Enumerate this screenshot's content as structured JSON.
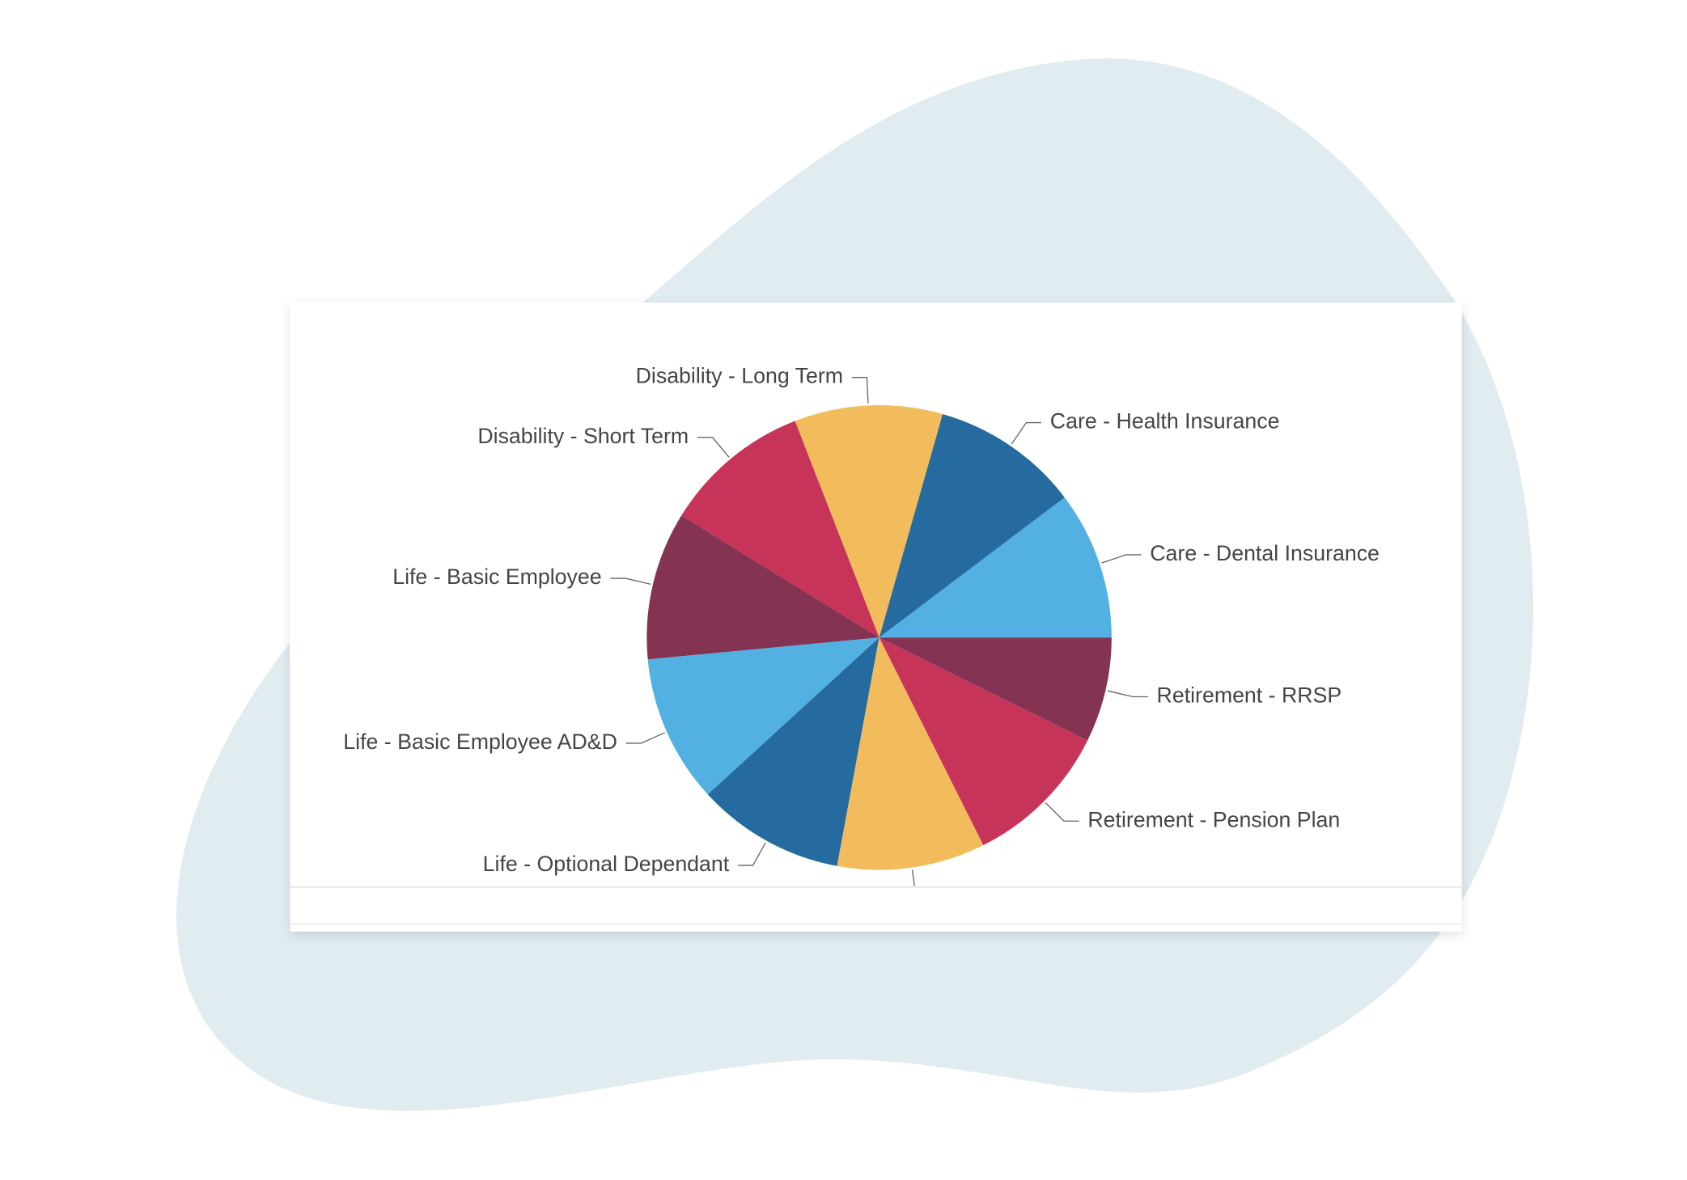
{
  "chart_data": {
    "type": "pie",
    "categories": [
      "Care - Dental Insurance",
      "Care - Health Insurance",
      "Disability - Long Term",
      "Disability - Short Term",
      "Life - Basic Employee",
      "Life - Basic Employee AD&D",
      "Life - Optional Dependant",
      null,
      "Retirement - Pension Plan",
      "Retirement - RRSP"
    ],
    "values": [
      10.3,
      10.3,
      10.3,
      10.3,
      10.3,
      10.3,
      10.3,
      10.3,
      10.3,
      7.3
    ],
    "colors": [
      "#52b0e2",
      "#266ba0",
      "#f2bb5b",
      "#c7345a",
      "#843352",
      "#52b0e2",
      "#266ba0",
      "#f2bb5b",
      "#c7345a",
      "#843352"
    ]
  }
}
